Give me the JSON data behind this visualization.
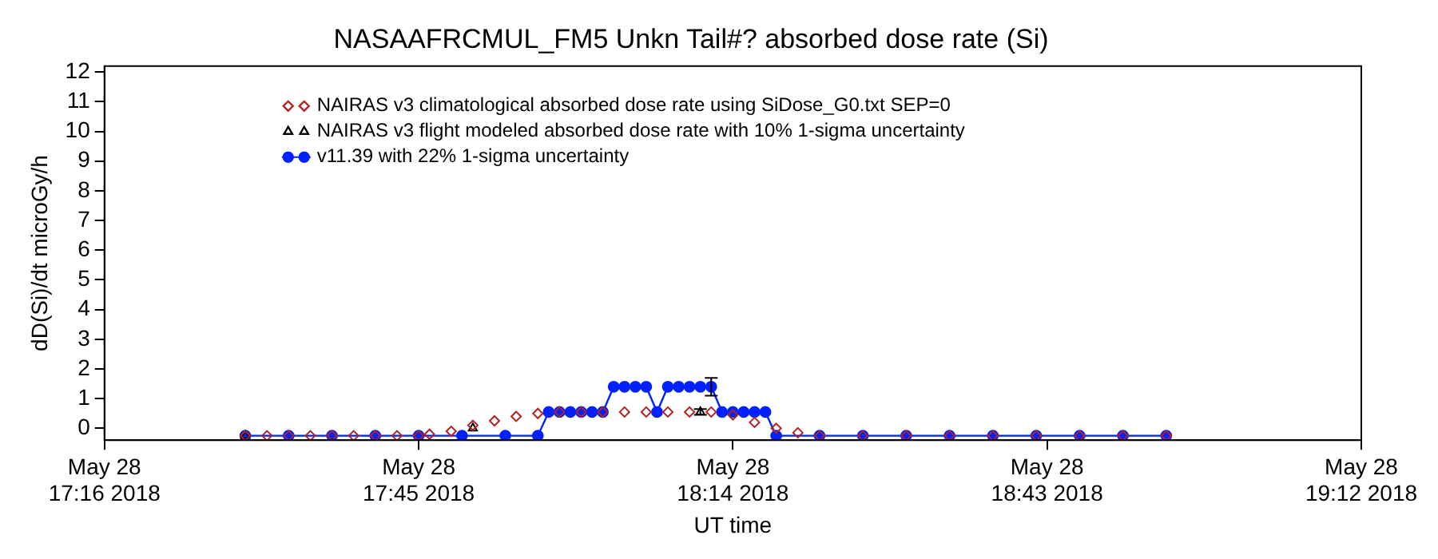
{
  "chart_data": {
    "type": "line",
    "title": "NASAAFRCMUL_FM5 Unkn Tail#? absorbed dose rate (Si)",
    "xlabel": "UT time",
    "ylabel": "dD(Si)/dt microGy/h",
    "xlim": [
      "2018-05-28T17:16",
      "2018-05-28T19:12"
    ],
    "xticks": [
      {
        "value": "2018-05-28T17:16",
        "label": "May 28\n17:16 2018"
      },
      {
        "value": "2018-05-28T17:45",
        "label": "May 28\n17:45 2018"
      },
      {
        "value": "2018-05-28T18:14",
        "label": "May 28\n18:14 2018"
      },
      {
        "value": "2018-05-28T18:43",
        "label": "May 28\n18:43 2018"
      },
      {
        "value": "2018-05-28T19:12",
        "label": "May 28\n19:12 2018"
      }
    ],
    "ylim": [
      -0.4,
      12.2
    ],
    "yticks": [
      0,
      1,
      2,
      3,
      4,
      5,
      6,
      7,
      8,
      9,
      10,
      11,
      12
    ],
    "grid": false,
    "legend": "top left",
    "series": [
      {
        "name": "NAIRAS v3 climatological absorbed dose rate using SiDose_G0.txt SEP=0",
        "type": "scatter",
        "color": "#b22222",
        "marker": "diamond",
        "x": [
          "2018-05-28T17:29",
          "2018-05-28T17:31",
          "2018-05-28T17:33",
          "2018-05-28T17:35",
          "2018-05-28T17:37",
          "2018-05-28T17:39",
          "2018-05-28T17:41",
          "2018-05-28T17:43",
          "2018-05-28T17:45",
          "2018-05-28T17:46",
          "2018-05-28T17:48",
          "2018-05-28T17:50",
          "2018-05-28T17:52",
          "2018-05-28T17:54",
          "2018-05-28T17:56",
          "2018-05-28T17:58",
          "2018-05-28T18:00",
          "2018-05-28T18:02",
          "2018-05-28T18:04",
          "2018-05-28T18:06",
          "2018-05-28T18:08",
          "2018-05-28T18:10",
          "2018-05-28T18:12",
          "2018-05-28T18:14",
          "2018-05-28T18:16",
          "2018-05-28T18:18",
          "2018-05-28T18:20",
          "2018-05-28T18:22",
          "2018-05-28T18:26",
          "2018-05-28T18:30",
          "2018-05-28T18:34",
          "2018-05-28T18:38",
          "2018-05-28T18:42",
          "2018-05-28T18:46",
          "2018-05-28T18:50",
          "2018-05-28T18:54"
        ],
        "values": [
          -0.25,
          -0.25,
          -0.25,
          -0.25,
          -0.25,
          -0.25,
          -0.25,
          -0.25,
          -0.25,
          -0.2,
          -0.1,
          0.1,
          0.25,
          0.4,
          0.5,
          0.55,
          0.55,
          0.55,
          0.55,
          0.55,
          0.55,
          0.55,
          0.55,
          0.45,
          0.2,
          0,
          -0.15,
          -0.25,
          -0.25,
          -0.25,
          -0.25,
          -0.25,
          -0.25,
          -0.25,
          -0.25,
          -0.25
        ]
      },
      {
        "name": "NAIRAS v3 flight modeled absorbed dose rate with 10% 1-sigma uncertainty",
        "type": "scatter",
        "color": "#000000",
        "marker": "triangle",
        "x": [
          "2018-05-28T17:29",
          "2018-05-28T17:50",
          "2018-05-28T18:11"
        ],
        "values": [
          -0.25,
          0,
          0.55
        ],
        "errors": [
          null,
          null,
          0.1
        ]
      },
      {
        "name": "v11.39 with 22% 1-sigma uncertainty",
        "color": "#0022ff",
        "marker": "circle",
        "line_style": "solid",
        "x": [
          "2018-05-28T17:29",
          "2018-05-28T17:33",
          "2018-05-28T17:37",
          "2018-05-28T17:41",
          "2018-05-28T17:45",
          "2018-05-28T17:49",
          "2018-05-28T17:53",
          "2018-05-28T17:56",
          "2018-05-28T17:57",
          "2018-05-28T17:58",
          "2018-05-28T17:59",
          "2018-05-28T18:00",
          "2018-05-28T18:01",
          "2018-05-28T18:02",
          "2018-05-28T18:03",
          "2018-05-28T18:04",
          "2018-05-28T18:05",
          "2018-05-28T18:06",
          "2018-05-28T18:07",
          "2018-05-28T18:08",
          "2018-05-28T18:09",
          "2018-05-28T18:10",
          "2018-05-28T18:11",
          "2018-05-28T18:12",
          "2018-05-28T18:13",
          "2018-05-28T18:14",
          "2018-05-28T18:15",
          "2018-05-28T18:16",
          "2018-05-28T18:17",
          "2018-05-28T18:18",
          "2018-05-28T18:22",
          "2018-05-28T18:26",
          "2018-05-28T18:30",
          "2018-05-28T18:34",
          "2018-05-28T18:38",
          "2018-05-28T18:42",
          "2018-05-28T18:46",
          "2018-05-28T18:50",
          "2018-05-28T18:54"
        ],
        "values": [
          -0.25,
          -0.25,
          -0.25,
          -0.25,
          -0.25,
          -0.25,
          -0.25,
          -0.25,
          0.55,
          0.55,
          0.55,
          0.55,
          0.55,
          0.55,
          1.4,
          1.4,
          1.4,
          1.4,
          0.55,
          1.4,
          1.4,
          1.4,
          1.4,
          1.4,
          0.55,
          0.55,
          0.55,
          0.55,
          0.55,
          -0.25,
          -0.25,
          -0.25,
          -0.25,
          -0.25,
          -0.25,
          -0.25,
          -0.25,
          -0.25,
          -0.25
        ],
        "errors": [
          null,
          null,
          null,
          null,
          null,
          null,
          null,
          null,
          null,
          null,
          null,
          null,
          null,
          null,
          null,
          null,
          null,
          null,
          null,
          null,
          null,
          null,
          null,
          0.3,
          null,
          null,
          null,
          null,
          null,
          null,
          null,
          null,
          null,
          null,
          null,
          null,
          null,
          null,
          null
        ]
      }
    ]
  }
}
